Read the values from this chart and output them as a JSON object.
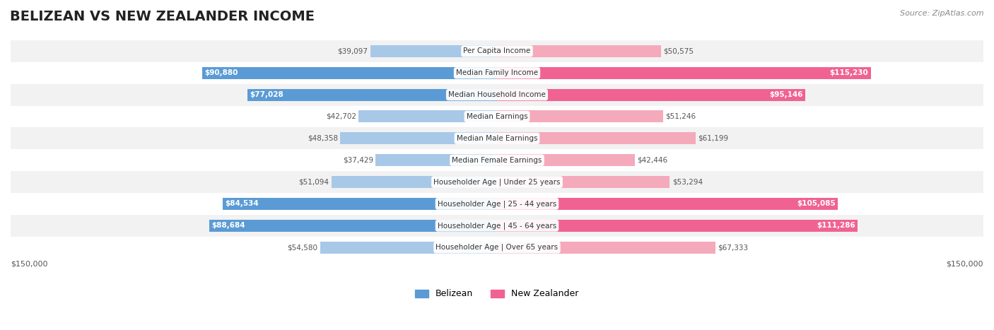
{
  "title": "BELIZEAN VS NEW ZEALANDER INCOME",
  "source": "Source: ZipAtlas.com",
  "categories": [
    "Per Capita Income",
    "Median Family Income",
    "Median Household Income",
    "Median Earnings",
    "Median Male Earnings",
    "Median Female Earnings",
    "Householder Age | Under 25 years",
    "Householder Age | 25 - 44 years",
    "Householder Age | 45 - 64 years",
    "Householder Age | Over 65 years"
  ],
  "belizean_values": [
    39097,
    90880,
    77028,
    42702,
    48358,
    37429,
    51094,
    84534,
    88684,
    54580
  ],
  "new_zealander_values": [
    50575,
    115230,
    95146,
    51246,
    61199,
    42446,
    53294,
    105085,
    111286,
    67333
  ],
  "belizean_labels": [
    "$39,097",
    "$90,880",
    "$77,028",
    "$42,702",
    "$48,358",
    "$37,429",
    "$51,094",
    "$84,534",
    "$88,684",
    "$54,580"
  ],
  "new_zealander_labels": [
    "$50,575",
    "$115,230",
    "$95,146",
    "$51,246",
    "$61,199",
    "$42,446",
    "$53,294",
    "$105,085",
    "$111,286",
    "$67,333"
  ],
  "max_value": 150000,
  "belizean_color_high": "#5B9BD5",
  "belizean_color_low": "#A8C8E8",
  "new_zealander_color_high": "#F06292",
  "new_zealander_color_low": "#F4AABB",
  "label_bg_color": "#FFFFFF",
  "row_bg_color": "#F2F2F2",
  "row_bg_alt": "#FFFFFF",
  "bg_color": "#FFFFFF",
  "title_fontsize": 14,
  "bar_height": 0.55,
  "x_label_left": "$150,000",
  "x_label_right": "$150,000"
}
